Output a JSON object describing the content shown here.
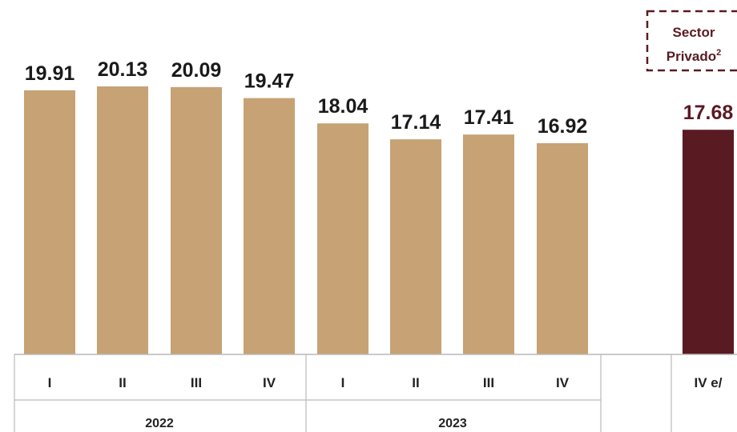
{
  "chart_data": {
    "type": "bar",
    "categories": [
      "I",
      "II",
      "III",
      "IV",
      "I",
      "II",
      "III",
      "IV",
      "IV e/"
    ],
    "groups": [
      {
        "label": "2022",
        "indices": [
          0,
          1,
          2,
          3
        ]
      },
      {
        "label": "2023",
        "indices": [
          4,
          5,
          6,
          7
        ]
      }
    ],
    "values": [
      19.91,
      20.13,
      20.09,
      19.47,
      18.04,
      17.14,
      17.41,
      16.92,
      17.68
    ],
    "highlight_index": 8,
    "annotation": {
      "line1": "Sector",
      "line2": "Privado",
      "superscript": "2"
    },
    "title": "",
    "xlabel": "",
    "ylabel": "",
    "ylim": [
      0,
      21
    ],
    "grid": false,
    "colors": {
      "bar": "#c6a274",
      "highlight": "#5a1a22",
      "text": "#1a1a1a",
      "highlight_text": "#5a1a22",
      "axis": "#b9b9b9"
    }
  }
}
